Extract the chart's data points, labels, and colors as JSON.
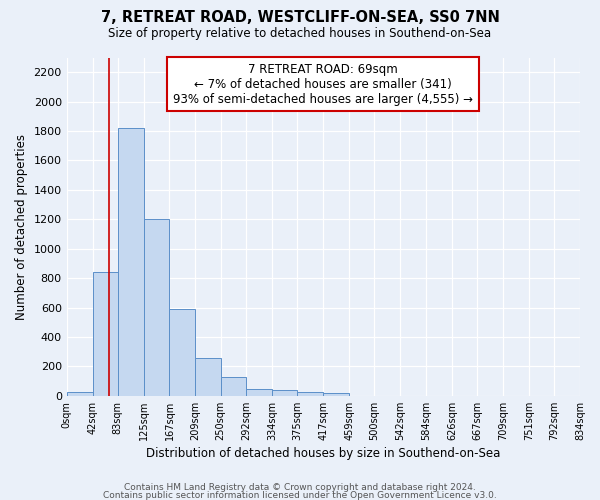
{
  "title": "7, RETREAT ROAD, WESTCLIFF-ON-SEA, SS0 7NN",
  "subtitle": "Size of property relative to detached houses in Southend-on-Sea",
  "xlabel": "Distribution of detached houses by size in Southend-on-Sea",
  "ylabel": "Number of detached properties",
  "bar_edges": [
    0,
    42,
    83,
    125,
    167,
    209,
    250,
    292,
    334,
    375,
    417,
    459,
    500,
    542,
    584,
    626,
    667,
    709,
    751,
    792,
    834
  ],
  "bar_heights": [
    25,
    845,
    1820,
    1200,
    590,
    255,
    130,
    45,
    42,
    27,
    18,
    0,
    0,
    0,
    0,
    0,
    0,
    0,
    0,
    0
  ],
  "bar_color": "#c5d8f0",
  "bar_edge_color": "#5b8fc9",
  "property_line_x": 69,
  "property_line_color": "#cc0000",
  "annotation_line1": "7 RETREAT ROAD: 69sqm",
  "annotation_line2": "← 7% of detached houses are smaller (341)",
  "annotation_line3": "93% of semi-detached houses are larger (4,555) →",
  "annotation_box_color": "#ffffff",
  "annotation_box_edge": "#cc0000",
  "ylim": [
    0,
    2300
  ],
  "yticks": [
    0,
    200,
    400,
    600,
    800,
    1000,
    1200,
    1400,
    1600,
    1800,
    2000,
    2200
  ],
  "xtick_labels": [
    "0sqm",
    "42sqm",
    "83sqm",
    "125sqm",
    "167sqm",
    "209sqm",
    "250sqm",
    "292sqm",
    "334sqm",
    "375sqm",
    "417sqm",
    "459sqm",
    "500sqm",
    "542sqm",
    "584sqm",
    "626sqm",
    "667sqm",
    "709sqm",
    "751sqm",
    "792sqm",
    "834sqm"
  ],
  "footer1": "Contains HM Land Registry data © Crown copyright and database right 2024.",
  "footer2": "Contains public sector information licensed under the Open Government Licence v3.0.",
  "bg_color": "#eaf0f9",
  "grid_color": "#ffffff"
}
